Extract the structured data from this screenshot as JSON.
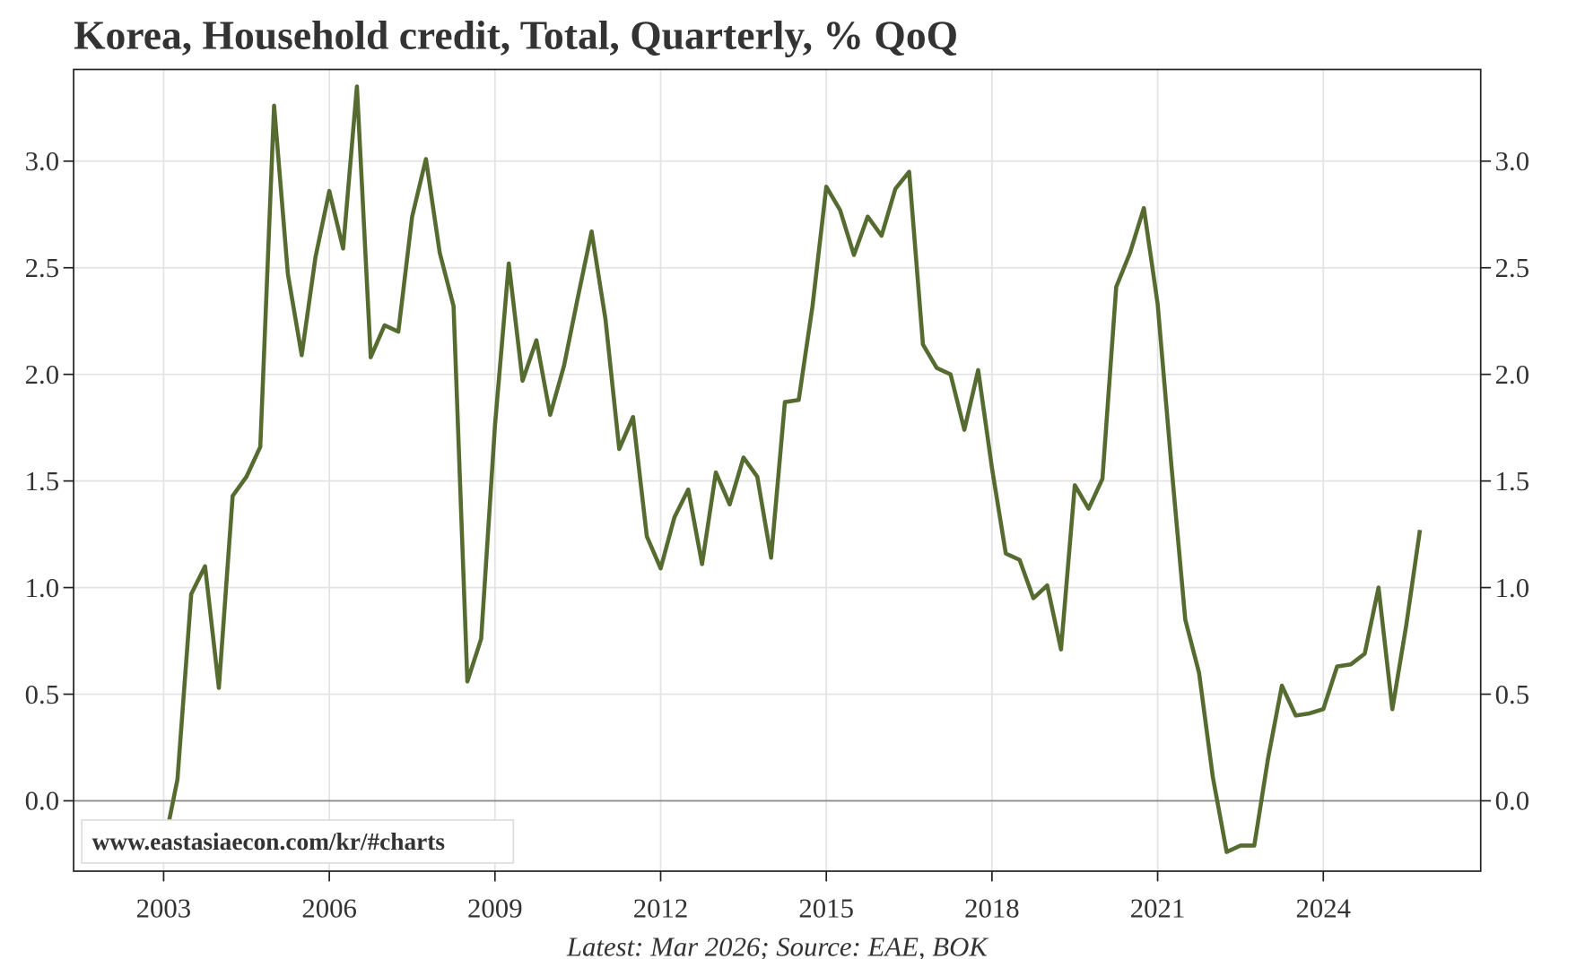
{
  "chart_data": {
    "type": "line",
    "title": "Korea, Household credit, Total, Quarterly, % QoQ",
    "footnote": "Latest: Mar 2026; Source: EAE, BOK",
    "watermark": "www.eastasiaecon.com/kr/#charts",
    "x": [
      2003,
      2003.25,
      2003.5,
      2003.75,
      2004,
      2004.25,
      2004.5,
      2004.75,
      2005,
      2005.25,
      2005.5,
      2005.75,
      2006,
      2006.25,
      2006.5,
      2006.75,
      2007,
      2007.25,
      2007.5,
      2007.75,
      2008,
      2008.25,
      2008.5,
      2008.75,
      2009,
      2009.25,
      2009.5,
      2009.75,
      2010,
      2010.25,
      2010.5,
      2010.75,
      2011,
      2011.25,
      2011.5,
      2011.75,
      2012,
      2012.25,
      2012.5,
      2012.75,
      2013,
      2013.25,
      2013.5,
      2013.75,
      2014,
      2014.25,
      2014.5,
      2014.75,
      2015,
      2015.25,
      2015.5,
      2015.75,
      2016,
      2016.25,
      2016.5,
      2016.75,
      2017,
      2017.25,
      2017.5,
      2017.75,
      2018,
      2018.25,
      2018.5,
      2018.75,
      2019,
      2019.25,
      2019.5,
      2019.75,
      2020,
      2020.25,
      2020.5,
      2020.75,
      2021,
      2021.25,
      2021.5,
      2021.75,
      2022,
      2022.25,
      2022.5,
      2022.75,
      2023,
      2023.25,
      2023.5,
      2023.75,
      2024,
      2024.25,
      2024.5,
      2024.75,
      2025,
      2025.25,
      2025.5,
      2025.75
    ],
    "series": [
      {
        "name": "Household credit, Total",
        "color": "#556b2f",
        "values": [
          -0.22,
          0.1,
          0.97,
          1.1,
          0.53,
          1.43,
          1.52,
          1.66,
          3.26,
          2.47,
          2.09,
          2.55,
          2.86,
          2.59,
          3.35,
          2.08,
          2.23,
          2.2,
          2.74,
          3.01,
          2.57,
          2.32,
          0.56,
          0.76,
          1.76,
          2.52,
          1.97,
          2.16,
          1.81,
          2.04,
          2.36,
          2.67,
          2.26,
          1.65,
          1.8,
          1.24,
          1.09,
          1.33,
          1.46,
          1.11,
          1.54,
          1.39,
          1.61,
          1.52,
          1.14,
          1.87,
          1.88,
          2.32,
          2.88,
          2.77,
          2.56,
          2.74,
          2.65,
          2.87,
          2.95,
          2.14,
          2.03,
          2.0,
          1.74,
          2.02,
          1.56,
          1.16,
          1.13,
          0.95,
          1.01,
          0.71,
          1.48,
          1.37,
          1.51,
          2.41,
          2.57,
          2.78,
          2.33,
          1.57,
          0.85,
          0.6,
          0.11,
          -0.24,
          -0.21,
          -0.21,
          0.2,
          0.54,
          0.4,
          0.41,
          0.43,
          0.63,
          0.64,
          0.69,
          1.0,
          0.43,
          0.82,
          1.27
        ]
      }
    ],
    "xlim": [
      2001.37,
      2026.85
    ],
    "xticks": [
      2003,
      2006,
      2009,
      2012,
      2015,
      2018,
      2021,
      2024
    ],
    "ylim": [
      -0.33,
      3.43
    ],
    "yticks": [
      {
        "value": 0,
        "label": "0.0"
      },
      {
        "value": 0.5,
        "label": "0.5"
      },
      {
        "value": 1,
        "label": "1.0"
      },
      {
        "value": 1.5,
        "label": "1.5"
      },
      {
        "value": 2,
        "label": "2.0"
      },
      {
        "value": 2.5,
        "label": "2.5"
      },
      {
        "value": 3,
        "label": "3.0"
      }
    ],
    "grid": true
  }
}
